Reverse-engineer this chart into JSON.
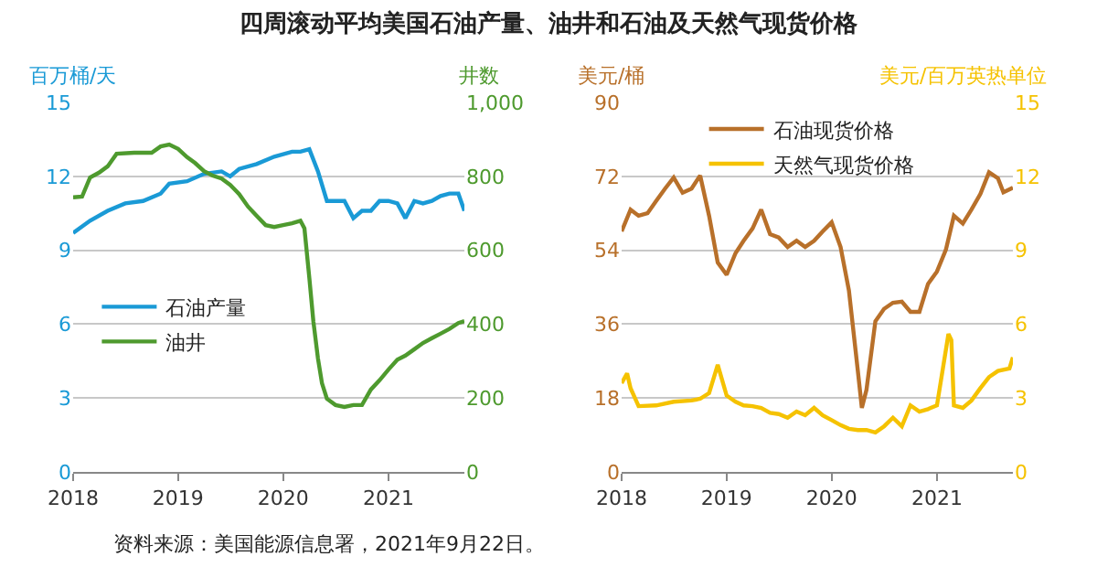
{
  "chart_data": [
    {
      "type": "line",
      "title": "四周滚动平均美国石油产量、油井和石油及天然气现货价格",
      "ylabel": "百万桶/天",
      "y2label": "井数",
      "annotations": [
        "资料来源：美国能源信息署，2021年9月22日。"
      ],
      "xlim": [
        "2018",
        "2021-09-22"
      ],
      "xticks": [
        "2018",
        "2019",
        "2020",
        "2021"
      ],
      "ylim": [
        0,
        15
      ],
      "yticks": [
        0,
        3,
        6,
        9,
        12,
        15
      ],
      "y2lim": [
        0,
        1000
      ],
      "y2ticks": [
        0,
        200,
        400,
        600,
        800,
        {
          "value": 1000,
          "label": "1,000"
        }
      ],
      "grid": "y",
      "legend": "left",
      "line_style": "solid",
      "series": [
        {
          "name": "石油产量",
          "color": "#1a9ad6",
          "x": [
            "2018-01",
            "2018-03",
            "2018-05",
            "2018-07",
            "2018-09",
            "2018-11",
            "2018-12",
            "2019-02",
            "2019-04",
            "2019-06",
            "2019-07",
            "2019-08",
            "2019-10",
            "2019-12",
            "2020-02",
            "2020-03",
            "2020-04",
            "2020-05",
            "2020-06",
            "2020-07",
            "2020-08",
            "2020-09",
            "2020-10",
            "2020-11",
            "2020-12",
            "2021-01",
            "2021-02",
            "2021-03",
            "2021-04",
            "2021-05",
            "2021-06",
            "2021-07",
            "2021-08",
            "2021-09",
            "2021-09-22"
          ],
          "values": [
            9.7,
            10.2,
            10.6,
            10.9,
            11.0,
            11.3,
            11.7,
            11.8,
            12.1,
            12.2,
            12.0,
            12.3,
            12.5,
            12.8,
            13.0,
            13.0,
            13.1,
            12.2,
            11.0,
            11.0,
            11.0,
            10.3,
            10.6,
            10.6,
            11.0,
            11.0,
            10.9,
            10.3,
            11.0,
            10.9,
            11.0,
            11.2,
            11.3,
            11.3,
            10.6
          ]
        },
        {
          "name": "油井",
          "color": "#4e9a2e",
          "axis": "y2",
          "x": [
            "2018-01",
            "2018-02",
            "2018-03",
            "2018-04",
            "2018-05",
            "2018-06",
            "2018-08",
            "2018-10",
            "2018-11",
            "2018-12",
            "2019-01",
            "2019-02",
            "2019-03",
            "2019-04",
            "2019-05",
            "2019-06",
            "2019-07",
            "2019-08",
            "2019-09",
            "2019-10",
            "2019-11",
            "2019-12",
            "2020-01",
            "2020-02",
            "2020-03",
            "2020-03-15",
            "2020-04",
            "2020-04-15",
            "2020-05",
            "2020-05-15",
            "2020-06",
            "2020-07",
            "2020-08",
            "2020-09",
            "2020-10",
            "2020-11",
            "2020-12",
            "2021-01",
            "2021-02",
            "2021-03",
            "2021-04",
            "2021-05",
            "2021-06",
            "2021-07",
            "2021-08",
            "2021-09",
            "2021-09-22"
          ],
          "values": [
            743,
            745,
            797,
            810,
            827,
            861,
            864,
            864,
            881,
            886,
            874,
            852,
            836,
            814,
            802,
            794,
            777,
            752,
            718,
            693,
            668,
            663,
            668,
            673,
            680,
            659,
            525,
            408,
            307,
            240,
            198,
            181,
            176,
            181,
            181,
            223,
            248,
            277,
            304,
            315,
            332,
            349,
            362,
            374,
            387,
            403,
            408
          ]
        }
      ]
    },
    {
      "type": "line",
      "ylabel": "美元/桶",
      "y2label": "美元/百万英热单位",
      "xlim": [
        "2018",
        "2021-09-22"
      ],
      "xticks": [
        "2018",
        "2019",
        "2020",
        "2021"
      ],
      "ylim": [
        0,
        90
      ],
      "yticks": [
        0,
        18,
        36,
        54,
        72,
        90
      ],
      "y2lim": [
        0,
        15
      ],
      "y2ticks": [
        0,
        3,
        6,
        9,
        12,
        15
      ],
      "grid": "y",
      "legend": "top",
      "line_style": "solid",
      "series": [
        {
          "name": "石油现货价格",
          "color": "#b8702a",
          "x": [
            "2018-01",
            "2018-02",
            "2018-03",
            "2018-04",
            "2018-05",
            "2018-06",
            "2018-07",
            "2018-08",
            "2018-09",
            "2018-10",
            "2018-11",
            "2018-12",
            "2019-01",
            "2019-02",
            "2019-03",
            "2019-04",
            "2019-05",
            "2019-06",
            "2019-07",
            "2019-08",
            "2019-09",
            "2019-10",
            "2019-11",
            "2019-12",
            "2020-01",
            "2020-02",
            "2020-03",
            "2020-04",
            "2020-04-15",
            "2020-05",
            "2020-06",
            "2020-07",
            "2020-08",
            "2020-09",
            "2020-10",
            "2020-11",
            "2020-12",
            "2021-01",
            "2021-02",
            "2021-03",
            "2021-04",
            "2021-05",
            "2021-06",
            "2021-07",
            "2021-08",
            "2021-08-20",
            "2021-09-22"
          ],
          "values": [
            58.6,
            63.9,
            62.4,
            63,
            66,
            69,
            71.7,
            68,
            69,
            72.2,
            62.4,
            51,
            48,
            53.3,
            56.3,
            59.3,
            63.9,
            57.9,
            57.1,
            54.8,
            56.3,
            54.8,
            56.3,
            58.6,
            60.8,
            54.8,
            44.2,
            24.6,
            15.6,
            20,
            36.7,
            39.7,
            41.2,
            41.5,
            39,
            39,
            45.8,
            48.8,
            54.1,
            62.4,
            60.5,
            63.9,
            67.7,
            73,
            71.5,
            68.1,
            69.2
          ]
        },
        {
          "name": "天然气现货价格",
          "color": "#f5c200",
          "axis": "y2",
          "x": [
            "2018-01",
            "2018-01-20",
            "2018-02",
            "2018-03",
            "2018-05",
            "2018-07",
            "2018-09",
            "2018-10",
            "2018-11",
            "2018-12",
            "2019-01",
            "2019-02",
            "2019-03",
            "2019-04",
            "2019-05",
            "2019-06",
            "2019-07",
            "2019-08",
            "2019-09",
            "2019-10",
            "2019-11",
            "2019-12",
            "2020-01",
            "2020-02",
            "2020-03",
            "2020-04",
            "2020-05",
            "2020-06",
            "2020-07",
            "2020-08",
            "2020-09",
            "2020-10",
            "2020-11",
            "2020-12",
            "2021-01",
            "2021-02-10",
            "2021-02-20",
            "2021-03",
            "2021-04",
            "2021-05",
            "2021-06",
            "2021-07",
            "2021-08",
            "2021-09-10",
            "2021-09-22"
          ],
          "values": [
            3.6,
            4.0,
            3.4,
            2.67,
            2.7,
            2.85,
            2.9,
            2.97,
            3.2,
            4.35,
            3.1,
            2.85,
            2.7,
            2.67,
            2.6,
            2.4,
            2.35,
            2.2,
            2.45,
            2.3,
            2.6,
            2.3,
            2.1,
            1.9,
            1.75,
            1.7,
            1.7,
            1.6,
            1.85,
            2.2,
            1.85,
            2.7,
            2.45,
            2.55,
            2.7,
            5.6,
            5.35,
            2.7,
            2.6,
            2.9,
            3.4,
            3.85,
            4.1,
            4.2,
            4.65
          ]
        }
      ]
    }
  ]
}
